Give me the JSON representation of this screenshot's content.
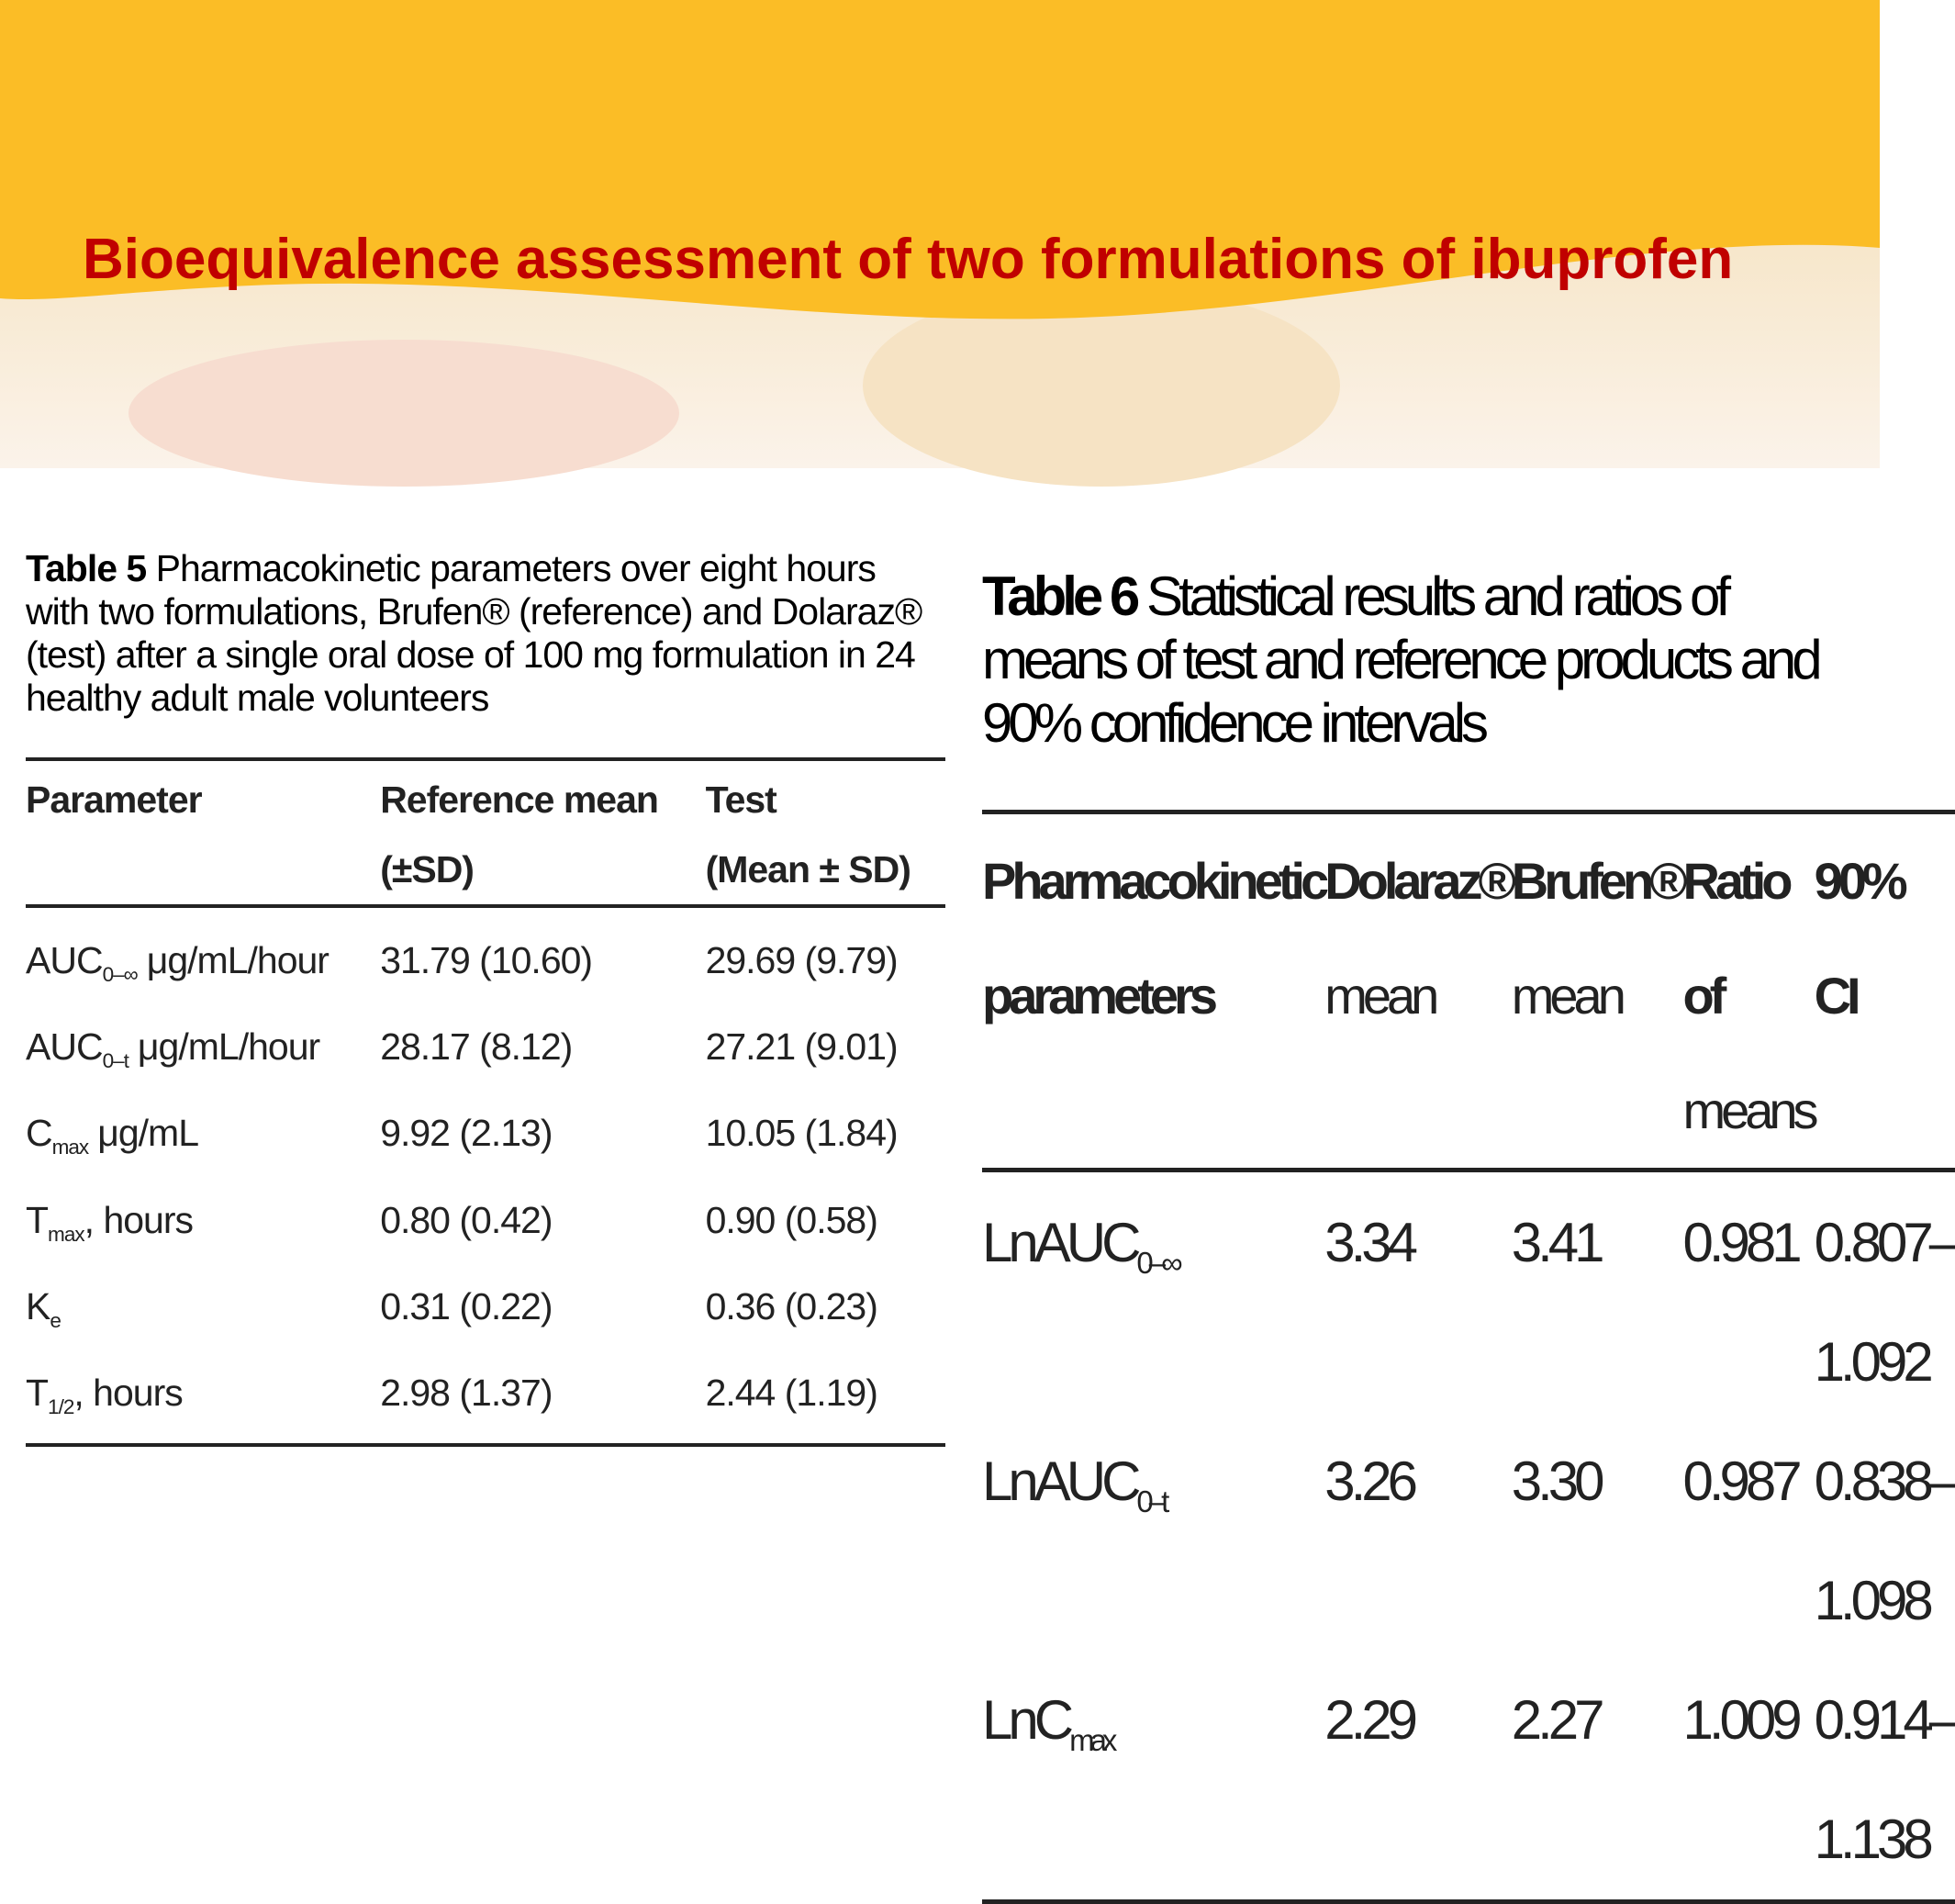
{
  "slide": {
    "title": "Bioequivalence assessment of two formulations of ibuprofen"
  },
  "table5": {
    "label": "Table 5",
    "caption": "Pharmacokinetic parameters over eight hours with two formulations, Brufen® (reference) and Dolaraz® (test) after a single oral dose of 100 mg formulation in 24 healthy adult male volunteers",
    "headers": [
      [
        "Parameter"
      ],
      [
        "Reference mean",
        "(±SD)"
      ],
      [
        "Test",
        "(Mean ± SD)"
      ]
    ],
    "rows": [
      [
        {
          "name": "AUC",
          "sub": "0–∞",
          "unit": "μg/mL/hour"
        },
        "31.79 (10.60)",
        "29.69 (9.79)"
      ],
      [
        {
          "name": "AUC",
          "sub": "0–t",
          "unit": "μg/mL/hour"
        },
        "28.17 (8.12)",
        "27.21 (9.01)"
      ],
      [
        {
          "name": "C",
          "sub": "max",
          "unit": "μg/mL"
        },
        "9.92 (2.13)",
        "10.05 (1.84)"
      ],
      [
        {
          "name": "T",
          "sub": "max",
          "unit": ", hours"
        },
        "0.80 (0.42)",
        "0.90 (0.58)"
      ],
      [
        {
          "name": "K",
          "sub": "e"
        },
        "0.31 (0.22)",
        "0.36 (0.23)"
      ],
      [
        {
          "name": "T",
          "sub": "1/2",
          "unit": ", hours"
        },
        "2.98 (1.37)",
        "2.44 (1.19)"
      ]
    ]
  },
  "table6": {
    "label": "Table 6",
    "caption": "Statistical results and ratios of means of test and reference products and 90% confidence intervals",
    "headers": [
      [
        "Pharmacokinetic",
        "parameters"
      ],
      [
        "Dolaraz®",
        "mean"
      ],
      [
        "Brufen®",
        "mean"
      ],
      [
        "Ratio of",
        "means"
      ],
      [
        "90% CI"
      ]
    ],
    "rows": [
      [
        {
          "name": "LnAUC",
          "sub": "0–∞"
        },
        "3.34",
        "3.41",
        "0.981",
        "0.807–1.092"
      ],
      [
        {
          "name": "LnAUC",
          "sub": "0–t"
        },
        "3.26",
        "3.30",
        "0.987",
        "0.838–1.098"
      ],
      [
        {
          "name": "LnC",
          "sub": "max"
        },
        "2.29",
        "2.27",
        "1.009",
        "0.914–1.138"
      ]
    ]
  }
}
